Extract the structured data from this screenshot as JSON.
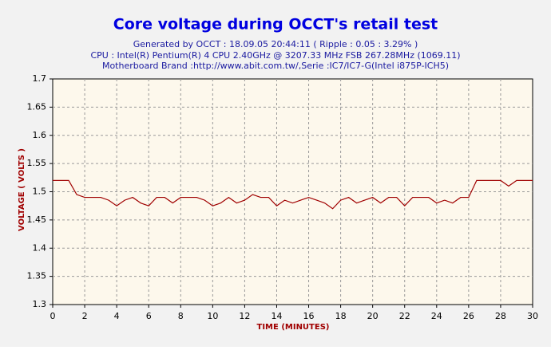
{
  "chart_data": {
    "type": "line",
    "title": "Core voltage during OCCT's retail test",
    "subtitle": [
      "Generated by OCCT : 18.09.05 20:44:11 ( Ripple : 0.05 : 3.29% )",
      "CPU : Intel(R) Pentium(R) 4 CPU 2.40GHz @ 3207.33 MHz FSB 267.28MHz (1069.11)",
      "Motherboard Brand :http://www.abit.com.tw/,Serie :IC7/IC7-G(Intel i875P-ICH5)"
    ],
    "x_label": "TIME (MINUTES)",
    "y_label": "VOLTAGE ( VOLTS )",
    "x": [
      0,
      0.5,
      1,
      1.5,
      2,
      2.5,
      3,
      3.5,
      4,
      4.5,
      5,
      5.5,
      6,
      6.5,
      7,
      7.5,
      8,
      8.5,
      9,
      9.5,
      10,
      10.5,
      11,
      11.5,
      12,
      12.5,
      13,
      13.5,
      14,
      14.5,
      15,
      15.5,
      16,
      16.5,
      17,
      17.5,
      18,
      18.5,
      19,
      19.5,
      20,
      20.5,
      21,
      21.5,
      22,
      22.5,
      23,
      23.5,
      24,
      24.5,
      25,
      25.5,
      26,
      26.5,
      27,
      27.5,
      28,
      28.5,
      29,
      29.5,
      30
    ],
    "series": [
      {
        "color": "#a00000",
        "values": [
          1.52,
          1.52,
          1.52,
          1.495,
          1.49,
          1.49,
          1.49,
          1.485,
          1.475,
          1.485,
          1.49,
          1.48,
          1.475,
          1.49,
          1.49,
          1.48,
          1.49,
          1.49,
          1.49,
          1.485,
          1.475,
          1.48,
          1.49,
          1.48,
          1.485,
          1.495,
          1.49,
          1.49,
          1.475,
          1.485,
          1.48,
          1.485,
          1.49,
          1.485,
          1.48,
          1.47,
          1.485,
          1.49,
          1.48,
          1.485,
          1.49,
          1.48,
          1.49,
          1.49,
          1.475,
          1.49,
          1.49,
          1.49,
          1.48,
          1.485,
          1.48,
          1.49,
          1.49,
          1.52,
          1.52,
          1.52,
          1.52,
          1.51,
          1.52,
          1.52,
          1.52
        ]
      }
    ],
    "xlim": [
      0,
      30
    ],
    "xticks": [
      0,
      2,
      4,
      6,
      8,
      10,
      12,
      14,
      16,
      18,
      20,
      22,
      24,
      26,
      28,
      30
    ],
    "ylim": [
      1.3,
      1.7
    ],
    "yticks": [
      1.3,
      1.35,
      1.4,
      1.45,
      1.5,
      1.55,
      1.6,
      1.65,
      1.7
    ],
    "grid": true
  }
}
